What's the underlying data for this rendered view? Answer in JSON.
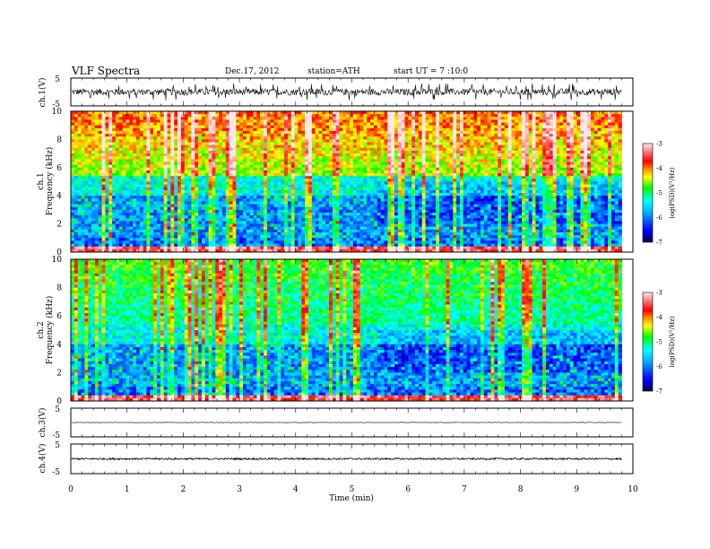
{
  "header": {
    "title": "VLF Spectra",
    "date": "Dec.17, 2012",
    "station": "station=ATH",
    "start": "start UT = 7 :10:0"
  },
  "chart_data": [
    {
      "type": "line",
      "name": "ch1 waveform",
      "ylabel": "ch.1(V)",
      "y_ticks": [
        "5",
        "-5"
      ],
      "ylim": [
        -5,
        5
      ],
      "xlim": [
        0,
        10
      ],
      "data_end_min": 9.8,
      "baseline_v": 0.0,
      "noise_amplitude_v": 1.2,
      "spike_amplitude_v": 3.0
    },
    {
      "type": "heatmap",
      "name": "ch1 spectrogram",
      "ylabel_channel": "ch.1",
      "ylabel": "Frequency (kHz)",
      "y_ticks": [
        "0",
        "2",
        "4",
        "6",
        "8",
        "10"
      ],
      "ylim": [
        0,
        10
      ],
      "xlim": [
        0,
        10
      ],
      "data_end_min": 9.8,
      "colorbar": {
        "label": "log(PSD)(V²/Hz)",
        "ticks": [
          "-3",
          "-4",
          "-5",
          "-6",
          "-7"
        ],
        "range": [
          -7,
          -3
        ]
      },
      "colors": {
        "low": "#000080",
        "blue": "#0000ff",
        "cyan": "#00ffff",
        "green": "#00ff00",
        "yellow": "#ffff00",
        "orange": "#ff8000",
        "red": "#ff0000",
        "pink": "#ffc0c0"
      }
    },
    {
      "type": "heatmap",
      "name": "ch2 spectrogram",
      "ylabel_channel": "ch.2",
      "ylabel": "Frequency (kHz)",
      "y_ticks": [
        "0",
        "2",
        "4",
        "6",
        "8",
        "10"
      ],
      "ylim": [
        0,
        10
      ],
      "xlim": [
        0,
        10
      ],
      "data_end_min": 9.8,
      "colorbar": {
        "label": "log(PSD)(V²/Hz)",
        "ticks": [
          "-3",
          "-4",
          "-5",
          "-6",
          "-7"
        ],
        "range": [
          -7,
          -3
        ]
      }
    },
    {
      "type": "line",
      "name": "ch3 waveform",
      "ylabel": "ch.3(V)",
      "y_ticks": [
        "5",
        "-5"
      ],
      "ylim": [
        -5,
        5
      ],
      "xlim": [
        0,
        10
      ],
      "data_end_min": 9.8,
      "baseline_v": 0.0,
      "noise_amplitude_v": 0.1
    },
    {
      "type": "line",
      "name": "ch4 waveform",
      "ylabel": "ch.4(V)",
      "y_ticks": [
        "5",
        "-5"
      ],
      "ylim": [
        -5,
        5
      ],
      "xlim": [
        0,
        10
      ],
      "data_end_min": 9.8,
      "baseline_v": 0.0,
      "noise_amplitude_v": 0.3
    }
  ],
  "x_axis": {
    "label": "Time (min)",
    "ticks": [
      "0",
      "1",
      "2",
      "3",
      "4",
      "5",
      "6",
      "7",
      "8",
      "9",
      "10"
    ]
  }
}
